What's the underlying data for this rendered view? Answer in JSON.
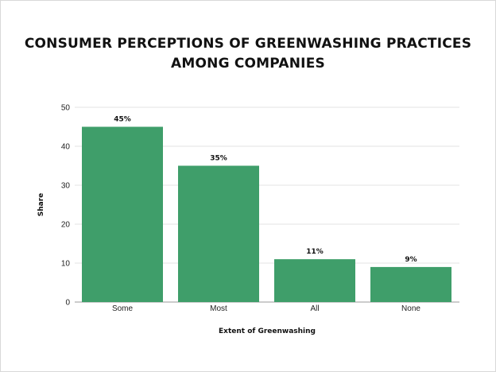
{
  "chart_data": {
    "type": "bar",
    "title_lines": [
      "CONSUMER PERCEPTIONS OF GREENWASHING PRACTICES",
      "AMONG COMPANIES"
    ],
    "categories": [
      "Some",
      "Most",
      "All",
      "None"
    ],
    "values": [
      45,
      35,
      11,
      9
    ],
    "data_labels": [
      "45%",
      "35%",
      "11%",
      "9%"
    ],
    "xlabel": "Extent of Greenwashing",
    "ylabel": "Share",
    "ylim": [
      0,
      50
    ],
    "yticks": [
      0,
      10,
      20,
      30,
      40,
      50
    ],
    "grid": true,
    "bar_color": "#3f9e6a"
  }
}
